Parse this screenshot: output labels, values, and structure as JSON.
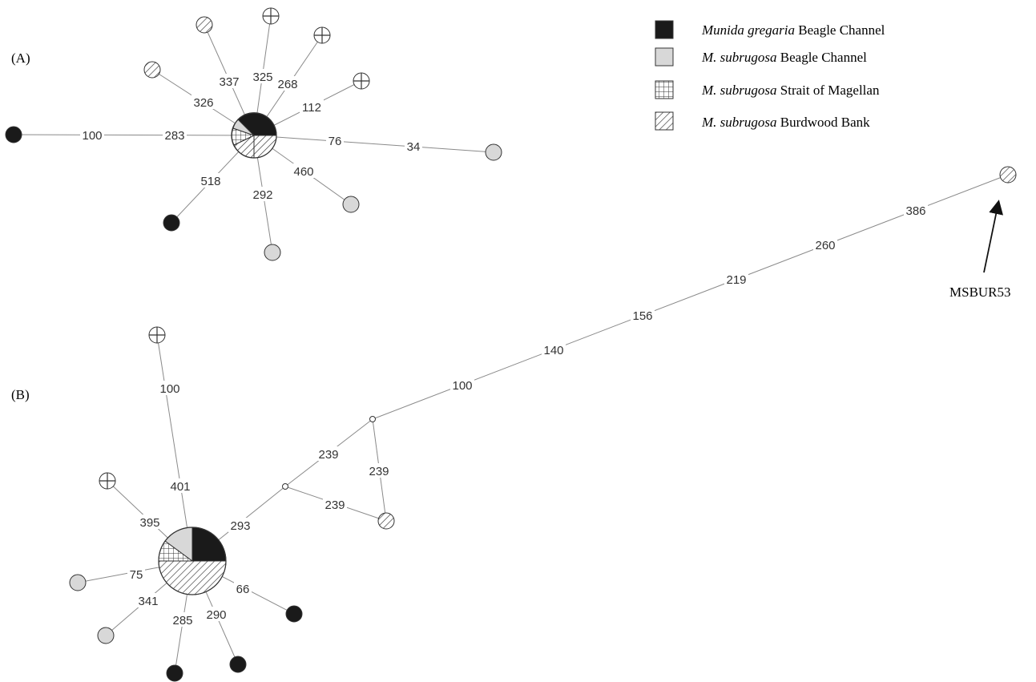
{
  "colors": {
    "gregaria_beagle": "#1a1a1a",
    "subrugosa_beagle": "#d8d8d8",
    "outline": "#333333",
    "edge": "#8a8a8a"
  },
  "legend": [
    {
      "key": "gregaria_beagle",
      "pattern": "black",
      "italic": "Munida gregaria",
      "rest": " Beagle Channel"
    },
    {
      "key": "subrugosa_beagle",
      "pattern": "gray",
      "italic": "M. subrugosa",
      "rest": " Beagle Channel"
    },
    {
      "key": "subrugosa_magellan",
      "pattern": "grid",
      "italic": "M. subrugosa",
      "rest": " Strait of Magellan"
    },
    {
      "key": "subrugosa_burdwood",
      "pattern": "hatch",
      "italic": "M. subrugosa",
      "rest": " Burdwood Bank"
    }
  ],
  "panel_a": {
    "label": "(A)",
    "center_slices": [
      "black",
      "gray",
      "grid",
      "hatch"
    ],
    "edges": [
      "100",
      "283",
      "326",
      "337",
      "325",
      "268",
      "112",
      "76",
      "34",
      "460",
      "292",
      "518"
    ],
    "nodes": [
      "black",
      "hatch",
      "hatch",
      "crosshair",
      "crosshair",
      "crosshair",
      "gray",
      "gray",
      "gray",
      "black"
    ]
  },
  "panel_b": {
    "label": "(B)",
    "center_slices": [
      "black",
      "gray",
      "grid",
      "hatch"
    ],
    "edges": [
      "100",
      "401",
      "395",
      "75",
      "341",
      "285",
      "290",
      "66",
      "293",
      "239",
      "239",
      "239",
      "100",
      "140",
      "156",
      "219",
      "260",
      "386"
    ],
    "nodes": [
      "crosshair",
      "crosshair",
      "gray",
      "gray",
      "black",
      "black",
      "black",
      "hatch",
      "hatch",
      "median",
      "median"
    ],
    "annotation": "MSBUR53"
  }
}
